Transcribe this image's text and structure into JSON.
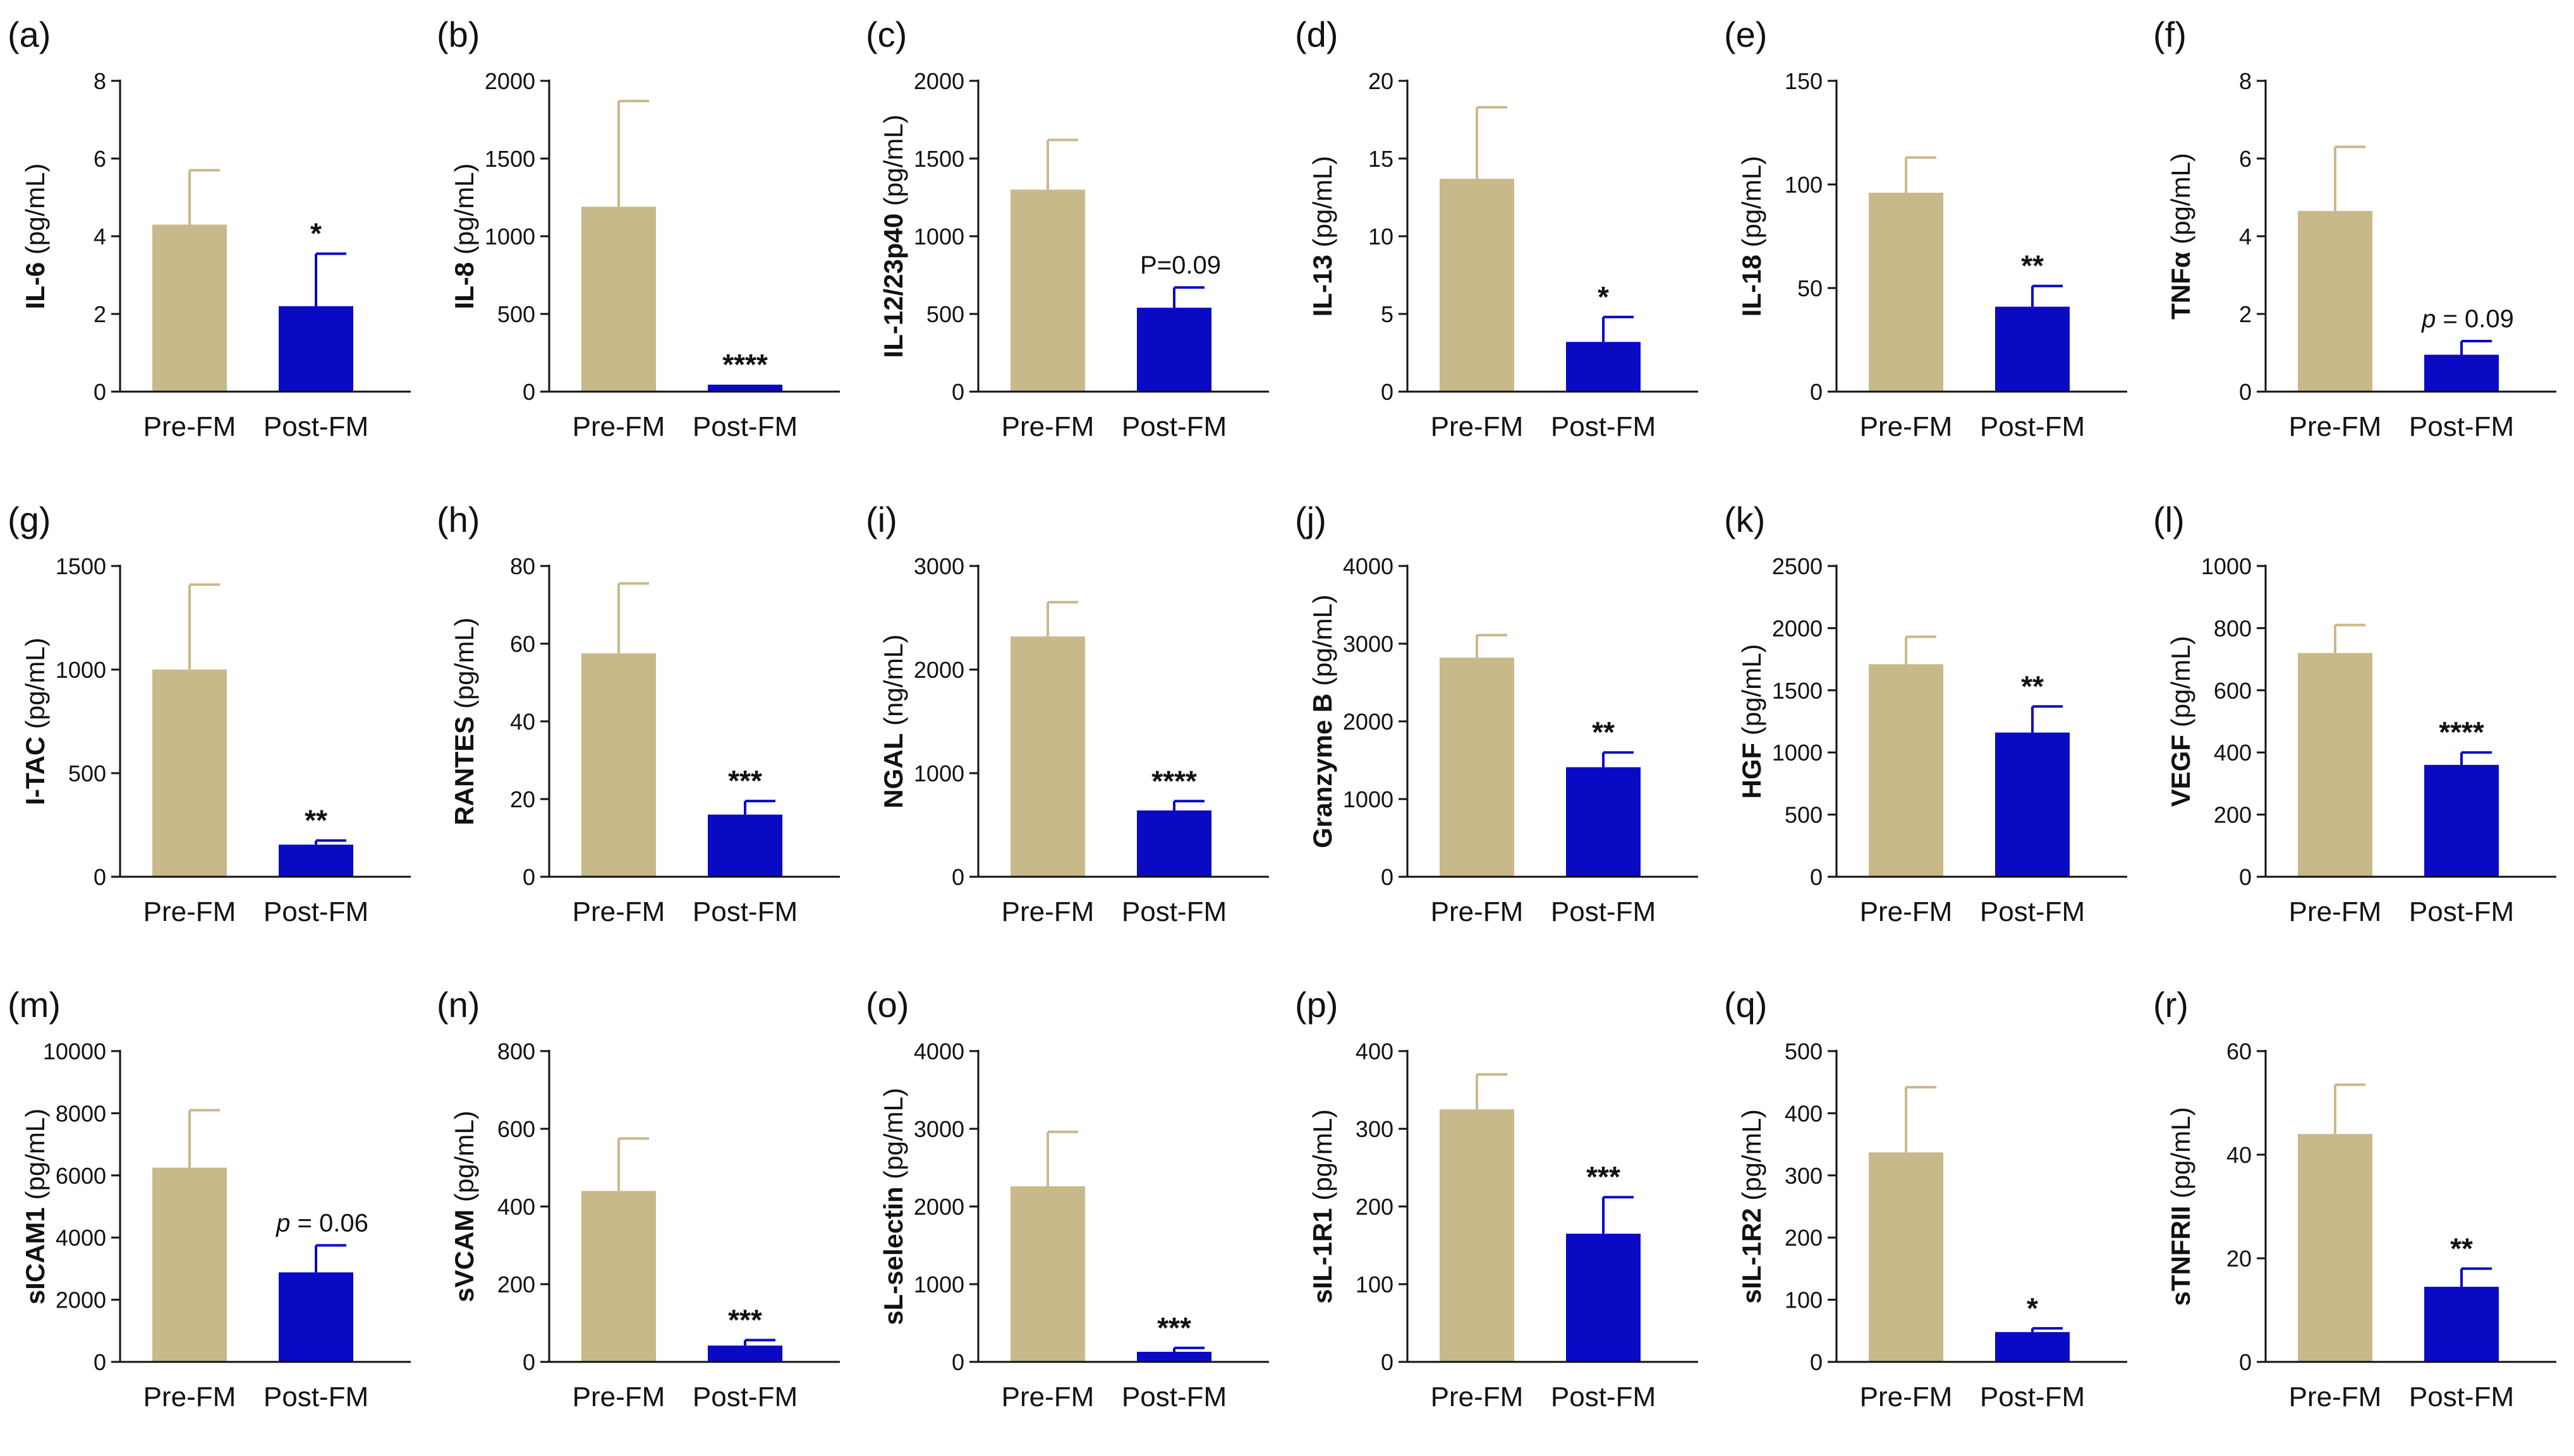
{
  "colors": {
    "pre": "#c8b98a",
    "post": "#0a0ac4",
    "pre_err": "#c8b98a",
    "post_err": "#0a0ac4"
  },
  "categories": [
    "Pre-FM",
    "Post-FM"
  ],
  "chart_data": [
    {
      "type": "bar",
      "panel": "(a)",
      "ylabel_bold": "IL-6",
      "ylabel_unit": " (pg/mL)",
      "ylim": [
        0,
        8
      ],
      "ticks": [
        "0",
        "2",
        "4",
        "6",
        "8"
      ],
      "categories": [
        "Pre-FM",
        "Post-FM"
      ],
      "values": [
        4.3,
        2.2
      ],
      "errors": [
        1.4,
        1.35
      ],
      "annotation": "*",
      "annotation_type": "sig"
    },
    {
      "type": "bar",
      "panel": "(b)",
      "ylabel_bold": "IL-8",
      "ylabel_unit": " (pg/mL)",
      "ylim": [
        0,
        2000
      ],
      "ticks": [
        "0",
        "500",
        "1000",
        "1500",
        "2000"
      ],
      "categories": [
        "Pre-FM",
        "Post-FM"
      ],
      "values": [
        1190,
        45
      ],
      "errors": [
        680,
        0
      ],
      "annotation": "****",
      "annotation_type": "sig"
    },
    {
      "type": "bar",
      "panel": "(c)",
      "ylabel_bold": "IL-12/23p40",
      "ylabel_unit": " (pg/mL)",
      "ylim": [
        0,
        2000
      ],
      "ticks": [
        "0",
        "500",
        "1000",
        "1500",
        "2000"
      ],
      "categories": [
        "Pre-FM",
        "Post-FM"
      ],
      "values": [
        1300,
        540
      ],
      "errors": [
        320,
        130
      ],
      "annotation": "P=0.09",
      "annotation_type": "note"
    },
    {
      "type": "bar",
      "panel": "(d)",
      "ylabel_bold": "IL-13",
      "ylabel_unit": " (pg/mL)",
      "ylim": [
        0,
        20
      ],
      "ticks": [
        "0",
        "5",
        "10",
        "15",
        "20"
      ],
      "categories": [
        "Pre-FM",
        "Post-FM"
      ],
      "values": [
        13.7,
        3.2
      ],
      "errors": [
        4.6,
        1.6
      ],
      "annotation": "*",
      "annotation_type": "sig"
    },
    {
      "type": "bar",
      "panel": "(e)",
      "ylabel_bold": "IL-18",
      "ylabel_unit": " (pg/mL)",
      "ylim": [
        0,
        150
      ],
      "ticks": [
        "0",
        "50",
        "100",
        "150"
      ],
      "categories": [
        "Pre-FM",
        "Post-FM"
      ],
      "values": [
        96,
        41
      ],
      "errors": [
        17,
        10
      ],
      "annotation": "**",
      "annotation_type": "sig"
    },
    {
      "type": "bar",
      "panel": "(f)",
      "ylabel_bold": "TNFα",
      "ylabel_unit": " (pg/mL)",
      "ylim": [
        0,
        8
      ],
      "ticks": [
        "0",
        "2",
        "4",
        "6",
        "8"
      ],
      "categories": [
        "Pre-FM",
        "Post-FM"
      ],
      "values": [
        4.65,
        0.95
      ],
      "errors": [
        1.65,
        0.35
      ],
      "annotation_italic": "p",
      "annotation": " = 0.09",
      "annotation_type": "pnote"
    },
    {
      "type": "bar",
      "panel": "(g)",
      "ylabel_bold": "I-TAC",
      "ylabel_unit": " (pg/mL)",
      "ylim": [
        0,
        1500
      ],
      "ticks": [
        "0",
        "500",
        "1000",
        "1500"
      ],
      "categories": [
        "Pre-FM",
        "Post-FM"
      ],
      "values": [
        1000,
        155
      ],
      "errors": [
        410,
        20
      ],
      "annotation": "**",
      "annotation_type": "sig"
    },
    {
      "type": "bar",
      "panel": "(h)",
      "ylabel_bold": "RANTES",
      "ylabel_unit": " (pg/mL)",
      "ylim": [
        0,
        80
      ],
      "ticks": [
        "0",
        "20",
        "40",
        "60",
        "80"
      ],
      "categories": [
        "Pre-FM",
        "Post-FM"
      ],
      "values": [
        57.5,
        16
      ],
      "errors": [
        18,
        3.5
      ],
      "annotation": "***",
      "annotation_type": "sig"
    },
    {
      "type": "bar",
      "panel": "(i)",
      "ylabel_bold": "NGAL",
      "ylabel_unit": " (ng/mL)",
      "ylim": [
        0,
        3000
      ],
      "ticks": [
        "0",
        "1000",
        "2000",
        "3000"
      ],
      "categories": [
        "Pre-FM",
        "Post-FM"
      ],
      "values": [
        2320,
        640
      ],
      "errors": [
        330,
        90
      ],
      "annotation": "****",
      "annotation_type": "sig"
    },
    {
      "type": "bar",
      "panel": "(j)",
      "ylabel_bold": "Granzyme B",
      "ylabel_unit": " (pg/mL)",
      "ylim": [
        0,
        4000
      ],
      "ticks": [
        "0",
        "1000",
        "2000",
        "3000",
        "4000"
      ],
      "categories": [
        "Pre-FM",
        "Post-FM"
      ],
      "values": [
        2820,
        1410
      ],
      "errors": [
        290,
        190
      ],
      "annotation": "**",
      "annotation_type": "sig"
    },
    {
      "type": "bar",
      "panel": "(k)",
      "ylabel_bold": "HGF",
      "ylabel_unit": " (pg/mL)",
      "ylim": [
        0,
        2500
      ],
      "ticks": [
        "0",
        "500",
        "1000",
        "1500",
        "2000",
        "2500"
      ],
      "categories": [
        "Pre-FM",
        "Post-FM"
      ],
      "values": [
        1710,
        1160
      ],
      "errors": [
        220,
        210
      ],
      "annotation": "**",
      "annotation_type": "sig"
    },
    {
      "type": "bar",
      "panel": "(l)",
      "ylabel_bold": "VEGF",
      "ylabel_unit": " (pg/mL)",
      "ylim": [
        0,
        1000
      ],
      "ticks": [
        "0",
        "200",
        "400",
        "600",
        "800",
        "1000"
      ],
      "categories": [
        "Pre-FM",
        "Post-FM"
      ],
      "values": [
        720,
        360
      ],
      "errors": [
        90,
        40
      ],
      "annotation": "****",
      "annotation_type": "sig"
    },
    {
      "type": "bar",
      "panel": "(m)",
      "ylabel_bold": "sICAM1",
      "ylabel_unit": " (pg/mL)",
      "ylim": [
        0,
        10000
      ],
      "ticks": [
        "0",
        "2000",
        "4000",
        "6000",
        "8000",
        "10000"
      ],
      "categories": [
        "Pre-FM",
        "Post-FM"
      ],
      "values": [
        6250,
        2880
      ],
      "errors": [
        1850,
        870
      ],
      "annotation_italic": "p",
      "annotation": " = 0.06",
      "annotation_type": "pnote"
    },
    {
      "type": "bar",
      "panel": "(n)",
      "ylabel_bold": "sVCAM",
      "ylabel_unit": " (pg/mL)",
      "ylim": [
        0,
        800
      ],
      "ticks": [
        "0",
        "200",
        "400",
        "600",
        "800"
      ],
      "categories": [
        "Pre-FM",
        "Post-FM"
      ],
      "values": [
        440,
        42
      ],
      "errors": [
        135,
        14
      ],
      "annotation": "***",
      "annotation_type": "sig"
    },
    {
      "type": "bar",
      "panel": "(o)",
      "ylabel_bold": "sL-selectin",
      "ylabel_unit": " (pg/mL)",
      "ylim": [
        0,
        4000
      ],
      "ticks": [
        "0",
        "1000",
        "2000",
        "3000",
        "4000"
      ],
      "categories": [
        "Pre-FM",
        "Post-FM"
      ],
      "values": [
        2260,
        130
      ],
      "errors": [
        700,
        50
      ],
      "annotation": "***",
      "annotation_type": "sig"
    },
    {
      "type": "bar",
      "panel": "(p)",
      "ylabel_bold": "sIL-1R1",
      "ylabel_unit": " (pg/mL)",
      "ylim": [
        0,
        400
      ],
      "ticks": [
        "0",
        "100",
        "200",
        "300",
        "400"
      ],
      "categories": [
        "Pre-FM",
        "Post-FM"
      ],
      "values": [
        325,
        165
      ],
      "errors": [
        45,
        47
      ],
      "annotation": "***",
      "annotation_type": "sig"
    },
    {
      "type": "bar",
      "panel": "(q)",
      "ylabel_bold": "sIL-1R2",
      "ylabel_unit": " (pg/mL)",
      "ylim": [
        0,
        500
      ],
      "ticks": [
        "0",
        "100",
        "200",
        "300",
        "400",
        "500"
      ],
      "categories": [
        "Pre-FM",
        "Post-FM"
      ],
      "values": [
        337,
        48
      ],
      "errors": [
        105,
        6
      ],
      "annotation": "*",
      "annotation_type": "sig"
    },
    {
      "type": "bar",
      "panel": "(r)",
      "ylabel_bold": "sTNFRII",
      "ylabel_unit": " (pg/mL)",
      "ylim": [
        0,
        60
      ],
      "ticks": [
        "0",
        "20",
        "40",
        "60"
      ],
      "categories": [
        "Pre-FM",
        "Post-FM"
      ],
      "values": [
        44,
        14.5
      ],
      "errors": [
        9.5,
        3.5
      ],
      "annotation": "**",
      "annotation_type": "sig"
    }
  ]
}
